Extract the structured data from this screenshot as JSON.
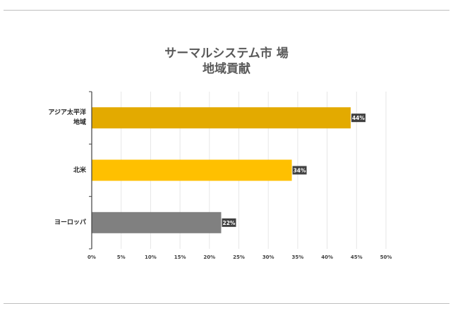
{
  "chart_data": {
    "type": "bar",
    "orientation": "horizontal",
    "title": [
      "サーマルシステム市 場",
      "地域貢献"
    ],
    "categories": [
      "アジア太平洋地域",
      "北米",
      "ヨーロッパ"
    ],
    "category_lines": [
      [
        "アジア太平洋",
        "地域"
      ],
      [
        "北米"
      ],
      [
        "ヨーロッパ"
      ]
    ],
    "values": [
      44,
      34,
      22
    ],
    "value_labels": [
      "44%",
      "34%",
      "22%"
    ],
    "bar_colors": [
      "#e3aa00",
      "#ffc000",
      "#808080"
    ],
    "xlim": [
      0,
      50
    ],
    "xticks": [
      0,
      5,
      10,
      15,
      20,
      25,
      30,
      35,
      40,
      45,
      50
    ],
    "xtick_labels": [
      "0%",
      "5%",
      "10%",
      "15%",
      "20%",
      "25%",
      "30%",
      "35%",
      "40%",
      "45%",
      "50%"
    ],
    "grid": "vertical",
    "xlabel": "",
    "ylabel": ""
  }
}
